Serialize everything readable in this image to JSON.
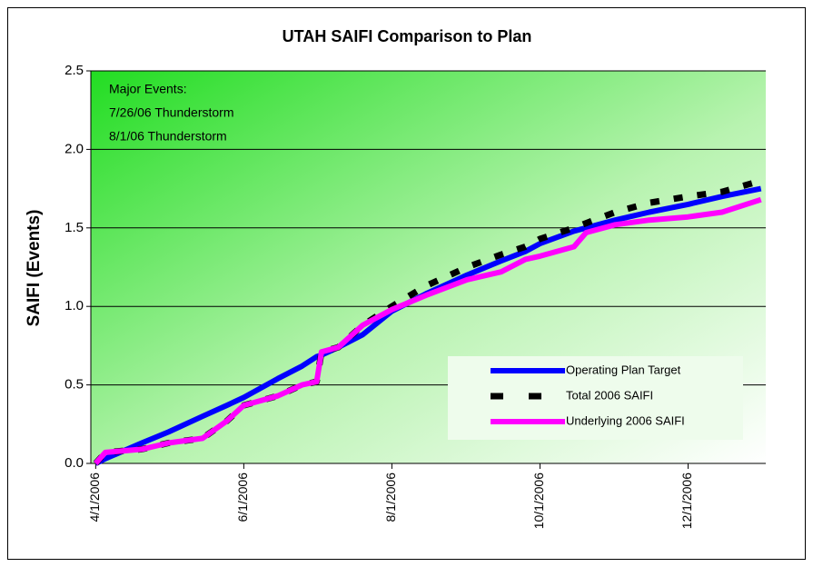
{
  "chart_data": {
    "type": "line",
    "title": "UTAH SAIFI Comparison to Plan",
    "y_label": "SAIFI (Events)",
    "annotations": [
      "Major Events:",
      "7/26/06 Thunderstorm",
      "8/1/06 Thunderstorm"
    ],
    "x": [
      "2006-04-01",
      "2006-04-05",
      "2006-04-20",
      "2006-05-01",
      "2006-05-15",
      "2006-05-25",
      "2006-06-01",
      "2006-06-15",
      "2006-06-25",
      "2006-07-01",
      "2006-07-03",
      "2006-07-10",
      "2006-07-20",
      "2006-08-01",
      "2006-08-15",
      "2006-09-01",
      "2006-09-15",
      "2006-09-25",
      "2006-10-01",
      "2006-10-15",
      "2006-10-20",
      "2006-11-01",
      "2006-11-15",
      "2006-12-01",
      "2006-12-15",
      "2006-12-31"
    ],
    "series": [
      {
        "name": "Operating Plan Target",
        "color": "#0000ff",
        "values": [
          0,
          0.03,
          0.13,
          0.2,
          0.3,
          0.37,
          0.42,
          0.54,
          0.62,
          0.68,
          0.69,
          0.74,
          0.82,
          0.97,
          1.08,
          1.2,
          1.29,
          1.35,
          1.4,
          1.48,
          1.5,
          1.55,
          1.6,
          1.65,
          1.7,
          1.75
        ]
      },
      {
        "name": "Total 2006 SAIFI",
        "color": "#000000",
        "values": [
          0,
          0.07,
          0.09,
          0.13,
          0.16,
          0.27,
          0.37,
          0.43,
          0.5,
          0.52,
          0.71,
          0.74,
          0.88,
          1.0,
          1.13,
          1.25,
          1.33,
          1.38,
          1.43,
          1.5,
          1.53,
          1.6,
          1.66,
          1.7,
          1.73,
          1.8
        ]
      },
      {
        "name": "Underlying 2006 SAIFI",
        "color": "#ff00ff",
        "values": [
          0,
          0.07,
          0.09,
          0.13,
          0.16,
          0.27,
          0.37,
          0.43,
          0.5,
          0.52,
          0.71,
          0.74,
          0.88,
          0.98,
          1.07,
          1.17,
          1.22,
          1.3,
          1.32,
          1.38,
          1.47,
          1.52,
          1.55,
          1.57,
          1.6,
          1.68
        ]
      }
    ],
    "xlim": [
      "2006-03-30",
      "2007-01-02"
    ],
    "xticks": [
      {
        "value": "2006-04-01",
        "label": "4/1/2006"
      },
      {
        "value": "2006-06-01",
        "label": "6/1/2006"
      },
      {
        "value": "2006-08-01",
        "label": "8/1/2006"
      },
      {
        "value": "2006-10-01",
        "label": "10/1/2006"
      },
      {
        "value": "2006-12-01",
        "label": "12/1/2006"
      }
    ],
    "ylim": [
      0,
      2.5
    ],
    "yticks": [
      {
        "value": 0,
        "label": "0.0"
      },
      {
        "value": 0.5,
        "label": "0.5"
      },
      {
        "value": 1,
        "label": "1.0"
      },
      {
        "value": 1.5,
        "label": "1.5"
      },
      {
        "value": 2,
        "label": "2.0"
      },
      {
        "value": 2.5,
        "label": "2.5"
      }
    ],
    "grid": true,
    "legend": "lower right"
  }
}
